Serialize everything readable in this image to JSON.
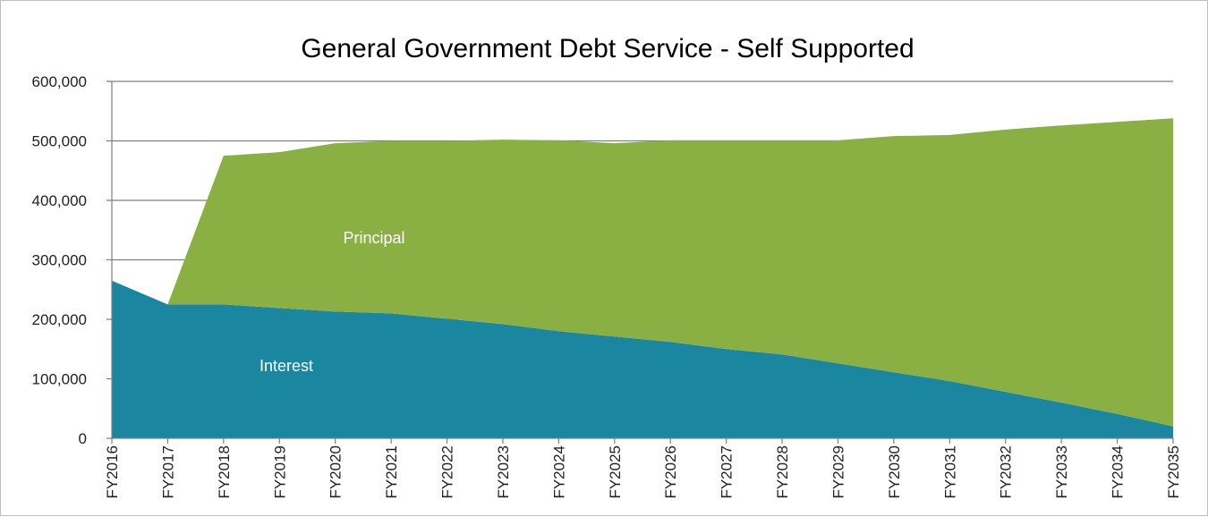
{
  "chart_data": {
    "type": "area",
    "stacked": true,
    "title": "General Government Debt Service - Self Supported",
    "xlabel": "",
    "ylabel": "",
    "ylim": [
      0,
      600000
    ],
    "yticks": [
      0,
      100000,
      200000,
      300000,
      400000,
      500000,
      600000
    ],
    "ytick_labels": [
      "0",
      "100,000",
      "200,000",
      "300,000",
      "400,000",
      "500,000",
      "600,000"
    ],
    "grid": true,
    "legend": "none",
    "categories": [
      "FY2016",
      "FY2017",
      "FY2018",
      "FY2019",
      "FY2020",
      "FY2021",
      "FY2022",
      "FY2023",
      "FY2024",
      "FY2025",
      "FY2026",
      "FY2027",
      "FY2028",
      "FY2029",
      "FY2030",
      "FY2031",
      "FY2032",
      "FY2033",
      "FY2034",
      "FY2035"
    ],
    "series": [
      {
        "name": "Interest",
        "color": "#1a86a0",
        "values": [
          265000,
          225000,
          225000,
          219000,
          213000,
          210000,
          201000,
          192000,
          180000,
          171000,
          162000,
          150000,
          141000,
          126000,
          111000,
          96000,
          78000,
          60000,
          41000,
          20000
        ]
      },
      {
        "name": "Principal",
        "color": "#8ab043",
        "values": [
          0,
          0,
          250000,
          262000,
          283000,
          290000,
          299000,
          310000,
          321000,
          325000,
          339000,
          351000,
          360000,
          375000,
          397000,
          414000,
          441000,
          466000,
          491000,
          518000
        ]
      }
    ]
  }
}
